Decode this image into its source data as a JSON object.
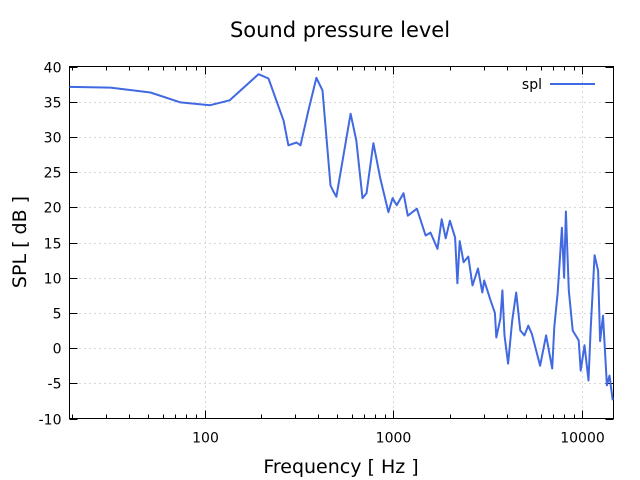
{
  "chart_data": {
    "type": "line",
    "title": "Sound pressure level",
    "xlabel": "Frequency [ Hz ]",
    "ylabel": "SPL [ dB ]",
    "xscale": "log",
    "xlim": [
      19.3,
      14600
    ],
    "ylim": [
      -10,
      40
    ],
    "grid": true,
    "legend_position": "top-right",
    "xticks": [
      {
        "value": 100,
        "label": "100"
      },
      {
        "value": 1000,
        "label": "1000"
      },
      {
        "value": 10000,
        "label": "10000"
      }
    ],
    "yticks": [
      {
        "value": 40,
        "label": "40"
      },
      {
        "value": 35,
        "label": "35"
      },
      {
        "value": 30,
        "label": "30"
      },
      {
        "value": 25,
        "label": "25"
      },
      {
        "value": 20,
        "label": "20"
      },
      {
        "value": 15,
        "label": "15"
      },
      {
        "value": 10,
        "label": "10"
      },
      {
        "value": 5,
        "label": "5"
      },
      {
        "value": 0,
        "label": "0"
      },
      {
        "value": -5,
        "label": "-5"
      },
      {
        "value": -10,
        "label": "-10"
      }
    ],
    "series": [
      {
        "name": "spl",
        "color": "#4169e1",
        "x": [
          19.3,
          31.8,
          51.8,
          74.6,
          107,
          136,
          193,
          218,
          262,
          278,
          307,
          322,
          355,
          391,
          421,
          464,
          480,
          499,
          593,
          636,
          686,
          720,
          783,
          852,
          940,
          990,
          1040,
          1130,
          1190,
          1330,
          1480,
          1570,
          1710,
          1800,
          1890,
          1990,
          2120,
          2180,
          2240,
          2350,
          2490,
          2620,
          2800,
          2950,
          3020,
          3260,
          3440,
          3500,
          3680,
          3770,
          3870,
          4040,
          4250,
          4460,
          4690,
          4930,
          5170,
          5400,
          5560,
          5970,
          6420,
          6920,
          7100,
          7400,
          7790,
          8000,
          8170,
          8470,
          8880,
          9560,
          9790,
          10250,
          10770,
          11040,
          11600,
          12100,
          12400,
          12850,
          13470,
          13900,
          14450
        ],
        "y": [
          37.1,
          37.0,
          36.3,
          34.9,
          34.5,
          35.2,
          38.9,
          38.3,
          32.3,
          28.8,
          29.2,
          28.8,
          33.8,
          38.4,
          36.6,
          23.1,
          22.3,
          21.5,
          33.3,
          29.5,
          21.3,
          22.0,
          29.1,
          24.1,
          19.3,
          21.3,
          20.3,
          22.0,
          18.8,
          19.8,
          16.0,
          16.4,
          14.1,
          18.3,
          15.6,
          18.1,
          15.7,
          9.2,
          15.2,
          12.2,
          13.0,
          8.9,
          11.3,
          7.9,
          9.6,
          6.8,
          5.0,
          1.5,
          4.2,
          8.2,
          1.8,
          -2.2,
          3.9,
          7.9,
          2.5,
          1.8,
          3.2,
          2.0,
          0.7,
          -2.5,
          1.8,
          -2.9,
          3.0,
          7.9,
          17.1,
          10.0,
          19.4,
          8.2,
          2.5,
          1.1,
          -3.2,
          0.4,
          -4.6,
          2.5,
          13.2,
          11.0,
          1.0,
          4.6,
          -5.3,
          -3.9,
          -7.4
        ]
      }
    ]
  }
}
